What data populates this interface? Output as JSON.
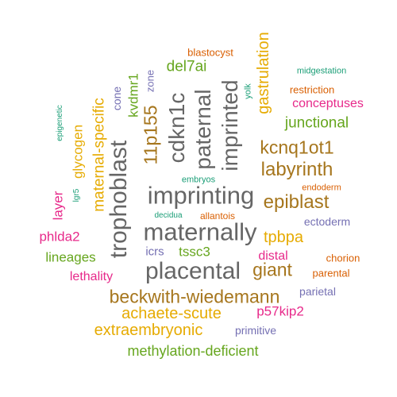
{
  "colors": {
    "green": "#1b9e77",
    "orange": "#d95f02",
    "purple": "#7570b3",
    "pink": "#e7298a",
    "olive": "#66a61e",
    "gold": "#e6ab02",
    "brown": "#a6761d",
    "gray": "#666666"
  },
  "words": [
    {
      "text": "imprinting",
      "color": "gray"
    },
    {
      "text": "trophoblast",
      "color": "gray"
    },
    {
      "text": "imprinted",
      "color": "gray"
    },
    {
      "text": "cdkn1c",
      "color": "gray"
    },
    {
      "text": "placental",
      "color": "gray"
    },
    {
      "text": "maternally",
      "color": "gray"
    },
    {
      "text": "paternal",
      "color": "gray"
    },
    {
      "text": "beckwith-wiedemann",
      "color": "brown"
    },
    {
      "text": "labyrinth",
      "color": "brown"
    },
    {
      "text": "kcnq1ot1",
      "color": "brown"
    },
    {
      "text": "11p155",
      "color": "brown"
    },
    {
      "text": "epiblast",
      "color": "brown"
    },
    {
      "text": "giant",
      "color": "brown"
    },
    {
      "text": "maternal-specific",
      "color": "gold"
    },
    {
      "text": "gastrulation",
      "color": "gold"
    },
    {
      "text": "extraembryonic",
      "color": "gold"
    },
    {
      "text": "achaete-scute",
      "color": "gold"
    },
    {
      "text": "glycogen",
      "color": "gold"
    },
    {
      "text": "tpbpa",
      "color": "gold"
    },
    {
      "text": "methylation-deficient",
      "color": "olive"
    },
    {
      "text": "junctional",
      "color": "olive"
    },
    {
      "text": "lineages",
      "color": "olive"
    },
    {
      "text": "kvdmr1",
      "color": "olive"
    },
    {
      "text": "del7ai",
      "color": "olive"
    },
    {
      "text": "tssc3",
      "color": "olive"
    },
    {
      "text": "phlda2",
      "color": "pink"
    },
    {
      "text": "p57kip2",
      "color": "pink"
    },
    {
      "text": "conceptuses",
      "color": "pink"
    },
    {
      "text": "lethality",
      "color": "pink"
    },
    {
      "text": "layer",
      "color": "pink"
    },
    {
      "text": "distal",
      "color": "pink"
    },
    {
      "text": "cone",
      "color": "purple"
    },
    {
      "text": "zone",
      "color": "purple"
    },
    {
      "text": "ectoderm",
      "color": "purple"
    },
    {
      "text": "icrs",
      "color": "purple"
    },
    {
      "text": "parietal",
      "color": "purple"
    },
    {
      "text": "primitive",
      "color": "purple"
    },
    {
      "text": "blastocyst",
      "color": "orange"
    },
    {
      "text": "restriction",
      "color": "orange"
    },
    {
      "text": "endoderm",
      "color": "orange"
    },
    {
      "text": "allantois",
      "color": "orange"
    },
    {
      "text": "chorion",
      "color": "orange"
    },
    {
      "text": "parental",
      "color": "orange"
    },
    {
      "text": "midgestation",
      "color": "green"
    },
    {
      "text": "epigenetic",
      "color": "green"
    },
    {
      "text": "lgr5",
      "color": "green"
    },
    {
      "text": "yolk",
      "color": "green"
    },
    {
      "text": "embryos",
      "color": "green"
    },
    {
      "text": "decidua",
      "color": "green"
    }
  ]
}
